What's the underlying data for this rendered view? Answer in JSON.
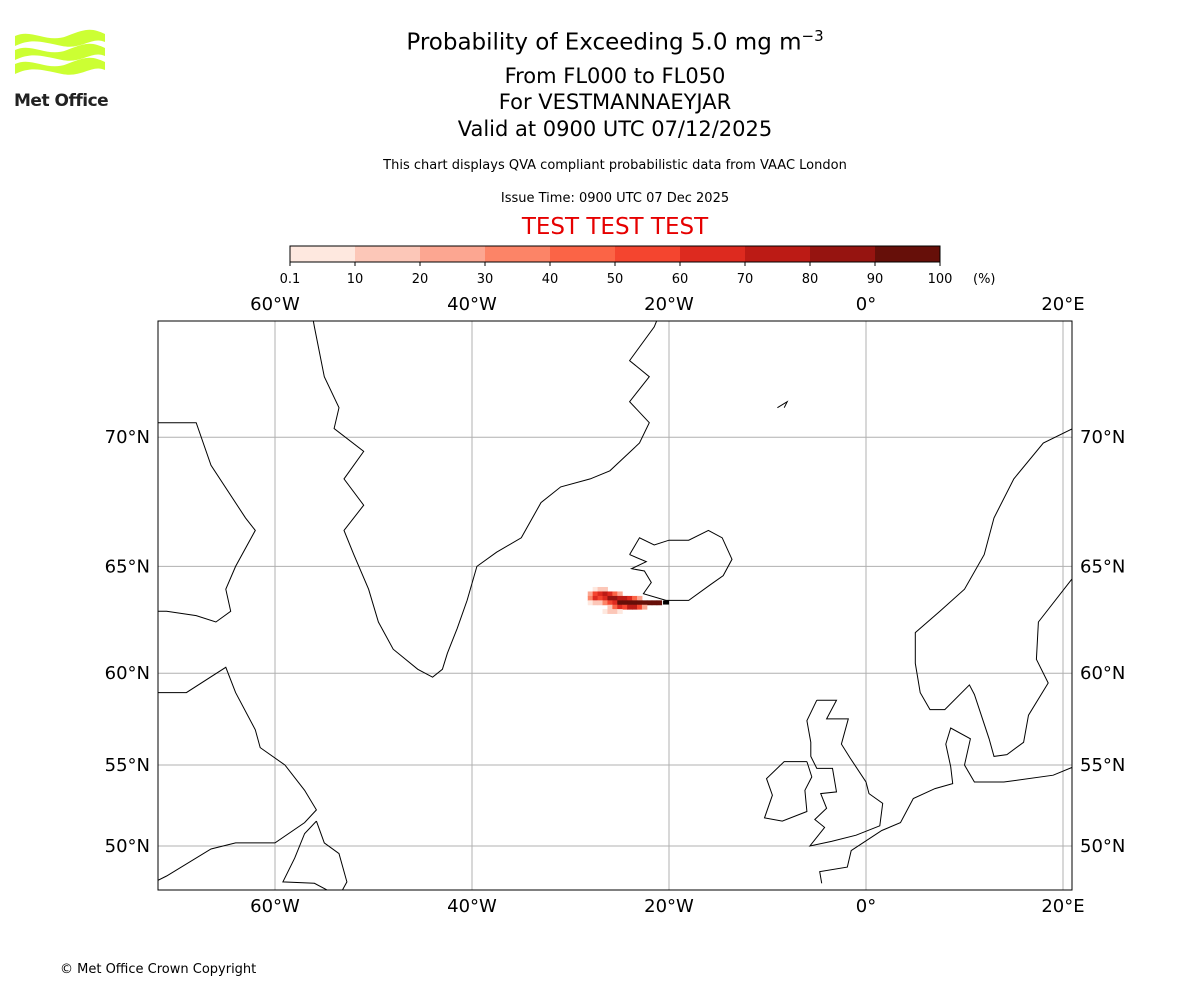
{
  "header": {
    "title_main": "Probability of Exceeding 5.0 mg m",
    "title_sup": "−3",
    "subtitle_levels": "From FL000 to FL050",
    "subtitle_volcano": "For VESTMANNAEYJAR",
    "subtitle_valid": "Valid at 0900 UTC 07/12/2025",
    "note": "This chart displays QVA compliant probabilistic data from VAAC London",
    "issue_time": "Issue Time: 0900 UTC 07 Dec 2025",
    "test_banner": "TEST TEST TEST"
  },
  "logo": {
    "text": "Met Office",
    "color": "#ccff33"
  },
  "footer": {
    "copyright": "© Met Office Crown Copyright"
  },
  "chart_data": {
    "type": "heatmap",
    "title": "Probability of Exceeding 5.0 mg m-3",
    "colorbar": {
      "ticks": [
        "0.1",
        "10",
        "20",
        "30",
        "40",
        "50",
        "60",
        "70",
        "80",
        "90",
        "100"
      ],
      "unit": "(%)",
      "colors": [
        "#fee8df",
        "#fcc7b8",
        "#fca691",
        "#fc8467",
        "#fb6446",
        "#f4452f",
        "#dd2a1f",
        "#bc1b15",
        "#961410",
        "#660f09"
      ]
    },
    "x_ticks": [
      {
        "lon": -60,
        "label": "60°W"
      },
      {
        "lon": -40,
        "label": "40°W"
      },
      {
        "lon": -20,
        "label": "20°W"
      },
      {
        "lon": 0,
        "label": "0°"
      },
      {
        "lon": 20,
        "label": "20°E"
      }
    ],
    "y_ticks": [
      {
        "lat": 70,
        "label": "70°N"
      },
      {
        "lat": 65,
        "label": "65°N"
      },
      {
        "lat": 60,
        "label": "60°N"
      },
      {
        "lat": 55,
        "label": "55°N"
      },
      {
        "lat": 50,
        "label": "50°N"
      }
    ],
    "extent": {
      "lon": [
        -71.9,
        20.9
      ],
      "lat": [
        47.6,
        74.5
      ]
    },
    "volcano": {
      "name": "VESTMANNAEYJAR",
      "lon": -20.3,
      "lat": 63.4
    },
    "plume_cells": [
      {
        "lon": -27.5,
        "lat": 64.0,
        "p": 5
      },
      {
        "lon": -27.0,
        "lat": 64.0,
        "p": 15
      },
      {
        "lon": -26.5,
        "lat": 64.0,
        "p": 15
      },
      {
        "lon": -28.0,
        "lat": 63.8,
        "p": 25
      },
      {
        "lon": -27.5,
        "lat": 63.8,
        "p": 55
      },
      {
        "lon": -27.0,
        "lat": 63.8,
        "p": 65
      },
      {
        "lon": -26.5,
        "lat": 63.8,
        "p": 75
      },
      {
        "lon": -26.0,
        "lat": 63.8,
        "p": 65
      },
      {
        "lon": -25.5,
        "lat": 63.8,
        "p": 45
      },
      {
        "lon": -25.0,
        "lat": 63.8,
        "p": 25
      },
      {
        "lon": -28.0,
        "lat": 63.6,
        "p": 35
      },
      {
        "lon": -27.5,
        "lat": 63.6,
        "p": 65
      },
      {
        "lon": -27.0,
        "lat": 63.6,
        "p": 55
      },
      {
        "lon": -26.5,
        "lat": 63.6,
        "p": 65
      },
      {
        "lon": -26.0,
        "lat": 63.6,
        "p": 85
      },
      {
        "lon": -25.5,
        "lat": 63.6,
        "p": 85
      },
      {
        "lon": -25.0,
        "lat": 63.6,
        "p": 75
      },
      {
        "lon": -24.5,
        "lat": 63.6,
        "p": 75
      },
      {
        "lon": -24.0,
        "lat": 63.6,
        "p": 65
      },
      {
        "lon": -23.5,
        "lat": 63.6,
        "p": 45
      },
      {
        "lon": -23.0,
        "lat": 63.6,
        "p": 25
      },
      {
        "lon": -28.0,
        "lat": 63.4,
        "p": 5
      },
      {
        "lon": -27.5,
        "lat": 63.4,
        "p": 15
      },
      {
        "lon": -27.0,
        "lat": 63.4,
        "p": 15
      },
      {
        "lon": -26.5,
        "lat": 63.4,
        "p": 35
      },
      {
        "lon": -26.0,
        "lat": 63.4,
        "p": 55
      },
      {
        "lon": -25.5,
        "lat": 63.4,
        "p": 65
      },
      {
        "lon": -25.0,
        "lat": 63.4,
        "p": 95
      },
      {
        "lon": -24.5,
        "lat": 63.4,
        "p": 95
      },
      {
        "lon": -24.0,
        "lat": 63.4,
        "p": 95
      },
      {
        "lon": -23.5,
        "lat": 63.4,
        "p": 95
      },
      {
        "lon": -23.0,
        "lat": 63.4,
        "p": 95
      },
      {
        "lon": -22.5,
        "lat": 63.4,
        "p": 95
      },
      {
        "lon": -22.0,
        "lat": 63.4,
        "p": 95
      },
      {
        "lon": -21.5,
        "lat": 63.4,
        "p": 95
      },
      {
        "lon": -21.0,
        "lat": 63.4,
        "p": 95
      },
      {
        "lon": -26.0,
        "lat": 63.2,
        "p": 15
      },
      {
        "lon": -25.5,
        "lat": 63.2,
        "p": 45
      },
      {
        "lon": -25.0,
        "lat": 63.2,
        "p": 65
      },
      {
        "lon": -24.5,
        "lat": 63.2,
        "p": 55
      },
      {
        "lon": -24.0,
        "lat": 63.2,
        "p": 75
      },
      {
        "lon": -23.5,
        "lat": 63.2,
        "p": 75
      },
      {
        "lon": -23.0,
        "lat": 63.2,
        "p": 55
      },
      {
        "lon": -22.5,
        "lat": 63.2,
        "p": 25
      },
      {
        "lon": -26.5,
        "lat": 63.0,
        "p": 5
      },
      {
        "lon": -26.0,
        "lat": 63.0,
        "p": 15
      },
      {
        "lon": -25.5,
        "lat": 63.0,
        "p": 15
      },
      {
        "lon": -25.0,
        "lat": 63.0,
        "p": 5
      }
    ]
  }
}
